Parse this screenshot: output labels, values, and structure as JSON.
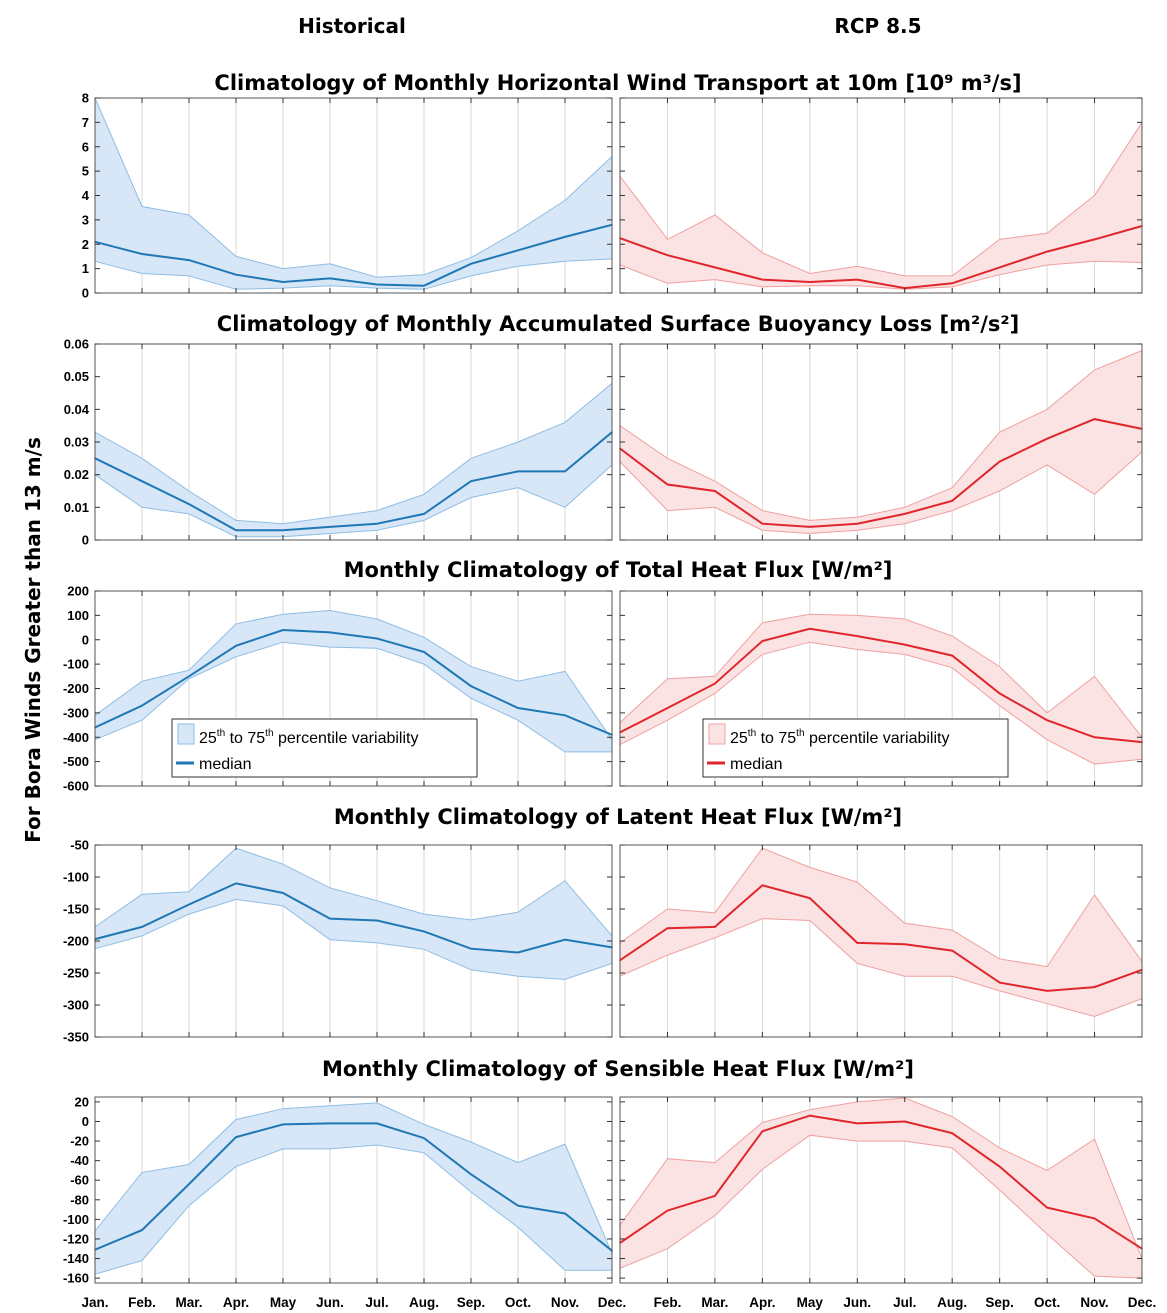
{
  "column_titles": [
    "Historical",
    "RCP 8.5"
  ],
  "y_axis_label": "For Bora Winds Greater than 13 m/s",
  "months": [
    "Jan.",
    "Feb.",
    "Mar.",
    "Apr.",
    "May",
    "Jun.",
    "Jul.",
    "Aug.",
    "Sep.",
    "Oct.",
    "Nov.",
    "Dec."
  ],
  "legend": {
    "band_pre": "25",
    "band_sup1": "th",
    "band_mid": " to 75",
    "band_sup2": "th",
    "band_post": " percentile variability",
    "median": "median"
  },
  "colors": {
    "hist_line": "#1f77b4",
    "hist_fill": "#d7e7f7",
    "hist_edge": "#8fbde3",
    "rcp_line": "#e0262b",
    "rcp_fill": "#fbe3e3",
    "rcp_edge": "#f0a0a0",
    "grid": "#d9d9d9"
  },
  "chart_data": [
    {
      "type": "area",
      "title": "Climatology of Monthly Horizontal Wind Transport at 10m [10⁹ m³/s]",
      "ylim": [
        0,
        8
      ],
      "yticks": [
        0,
        1,
        2,
        3,
        4,
        5,
        6,
        7,
        8
      ],
      "grid": "vertical",
      "series": [
        {
          "name": "Historical",
          "median": [
            2.1,
            1.6,
            1.35,
            0.75,
            0.45,
            0.6,
            0.35,
            0.3,
            1.2,
            1.75,
            2.3,
            2.8
          ],
          "p25": [
            1.3,
            0.8,
            0.7,
            0.15,
            0.2,
            0.3,
            0.2,
            0.15,
            0.7,
            1.1,
            1.3,
            1.4
          ],
          "p75": [
            8.0,
            3.55,
            3.2,
            1.5,
            1.0,
            1.2,
            0.65,
            0.75,
            1.45,
            2.55,
            3.8,
            5.6
          ]
        },
        {
          "name": "RCP 8.5",
          "median": [
            2.25,
            1.55,
            1.05,
            0.55,
            0.45,
            0.55,
            0.2,
            0.4,
            1.05,
            1.7,
            2.2,
            2.75
          ],
          "p25": [
            1.15,
            0.4,
            0.55,
            0.25,
            0.3,
            0.3,
            0.15,
            0.25,
            0.75,
            1.15,
            1.3,
            1.25
          ],
          "p75": [
            4.8,
            2.2,
            3.2,
            1.65,
            0.8,
            1.1,
            0.7,
            0.7,
            2.2,
            2.45,
            4.0,
            7.0
          ]
        }
      ]
    },
    {
      "type": "area",
      "title": "Climatology of Monthly Accumulated Surface Buoyancy Loss [m²/s²]",
      "ylim": [
        0,
        0.06
      ],
      "yticks": [
        0,
        0.01,
        0.02,
        0.03,
        0.04,
        0.05,
        0.06
      ],
      "ytick_labels": [
        "0",
        "0.01",
        "0.02",
        "0.03",
        "0.04",
        "0.05",
        "0.06"
      ],
      "grid": "vertical",
      "series": [
        {
          "name": "Historical",
          "median": [
            0.025,
            0.018,
            0.011,
            0.003,
            0.003,
            0.004,
            0.005,
            0.008,
            0.018,
            0.021,
            0.021,
            0.033
          ],
          "p25": [
            0.02,
            0.01,
            0.008,
            0.001,
            0.001,
            0.002,
            0.003,
            0.006,
            0.013,
            0.016,
            0.01,
            0.023
          ],
          "p75": [
            0.033,
            0.025,
            0.015,
            0.006,
            0.005,
            0.007,
            0.009,
            0.014,
            0.025,
            0.03,
            0.036,
            0.048
          ]
        },
        {
          "name": "RCP 8.5",
          "median": [
            0.028,
            0.017,
            0.015,
            0.005,
            0.004,
            0.005,
            0.008,
            0.012,
            0.024,
            0.031,
            0.037,
            0.034
          ],
          "p25": [
            0.024,
            0.009,
            0.01,
            0.003,
            0.002,
            0.003,
            0.005,
            0.009,
            0.015,
            0.023,
            0.014,
            0.027
          ],
          "p75": [
            0.035,
            0.025,
            0.018,
            0.009,
            0.006,
            0.007,
            0.01,
            0.016,
            0.033,
            0.04,
            0.052,
            0.058
          ]
        }
      ]
    },
    {
      "type": "area",
      "title": "Monthly Climatology of Total Heat Flux  [W/m²]",
      "ylim": [
        -600,
        200
      ],
      "yticks": [
        -600,
        -500,
        -400,
        -300,
        -200,
        -100,
        0,
        100,
        200
      ],
      "grid": "vertical",
      "series": [
        {
          "name": "Historical",
          "median": [
            -360,
            -270,
            -150,
            -25,
            40,
            30,
            5,
            -50,
            -190,
            -280,
            -310,
            -390
          ],
          "p25": [
            -410,
            -330,
            -160,
            -70,
            -10,
            -30,
            -35,
            -100,
            -240,
            -330,
            -460,
            -460
          ],
          "p75": [
            -310,
            -170,
            -125,
            65,
            105,
            120,
            85,
            10,
            -110,
            -170,
            -130,
            -410
          ]
        },
        {
          "name": "RCP 8.5",
          "median": [
            -380,
            -280,
            -180,
            -5,
            45,
            15,
            -20,
            -65,
            -220,
            -330,
            -400,
            -420
          ],
          "p25": [
            -430,
            -330,
            -220,
            -60,
            -10,
            -40,
            -60,
            -115,
            -270,
            -410,
            -510,
            -490
          ],
          "p75": [
            -340,
            -160,
            -150,
            70,
            105,
            100,
            85,
            15,
            -110,
            -300,
            -150,
            -400
          ]
        }
      ]
    },
    {
      "type": "area",
      "title": "Monthly Climatology of Latent Heat Flux  [W/m²]",
      "ylim": [
        -350,
        -50
      ],
      "yticks": [
        -350,
        -300,
        -250,
        -200,
        -150,
        -100,
        -50
      ],
      "grid": "vertical",
      "series": [
        {
          "name": "Historical",
          "median": [
            -197,
            -178,
            -143,
            -110,
            -125,
            -165,
            -168,
            -185,
            -212,
            -218,
            -198,
            -210
          ],
          "p25": [
            -212,
            -192,
            -158,
            -135,
            -145,
            -198,
            -203,
            -213,
            -245,
            -255,
            -260,
            -235
          ],
          "p75": [
            -178,
            -127,
            -123,
            -55,
            -80,
            -117,
            -137,
            -158,
            -167,
            -155,
            -106,
            -192
          ]
        },
        {
          "name": "RCP 8.5",
          "median": [
            -230,
            -180,
            -178,
            -113,
            -133,
            -203,
            -205,
            -215,
            -265,
            -278,
            -272,
            -245
          ],
          "p25": [
            -255,
            -222,
            -195,
            -165,
            -168,
            -235,
            -255,
            -255,
            -278,
            -298,
            -318,
            -290
          ],
          "p75": [
            -203,
            -150,
            -156,
            -55,
            -85,
            -108,
            -172,
            -183,
            -228,
            -240,
            -128,
            -232
          ]
        }
      ]
    },
    {
      "type": "area",
      "title": "Monthly Climatology of Sensible Heat Flux  [W/m²]",
      "ylim": [
        -165,
        25
      ],
      "yticks": [
        -160,
        -140,
        -120,
        -100,
        -80,
        -60,
        -40,
        -20,
        0,
        20
      ],
      "grid": "vertical",
      "series": [
        {
          "name": "Historical",
          "median": [
            -131,
            -111,
            -64,
            -16,
            -3,
            -2,
            -2,
            -17,
            -54,
            -86,
            -94,
            -132
          ],
          "p25": [
            -156,
            -142,
            -86,
            -46,
            -28,
            -28,
            -24,
            -32,
            -72,
            -108,
            -152,
            -152
          ],
          "p75": [
            -112,
            -52,
            -44,
            2,
            13,
            16,
            19,
            -3,
            -21,
            -42,
            -23,
            -135
          ]
        },
        {
          "name": "RCP 8.5",
          "median": [
            -124,
            -91,
            -76,
            -10,
            6,
            -2,
            0,
            -12,
            -46,
            -88,
            -99,
            -130
          ],
          "p25": [
            -150,
            -130,
            -96,
            -49,
            -14,
            -20,
            -20,
            -27,
            -70,
            -115,
            -158,
            -160
          ],
          "p75": [
            -106,
            -38,
            -42,
            -1,
            12,
            20,
            24,
            5,
            -27,
            -50,
            -18,
            -140
          ]
        }
      ]
    }
  ]
}
